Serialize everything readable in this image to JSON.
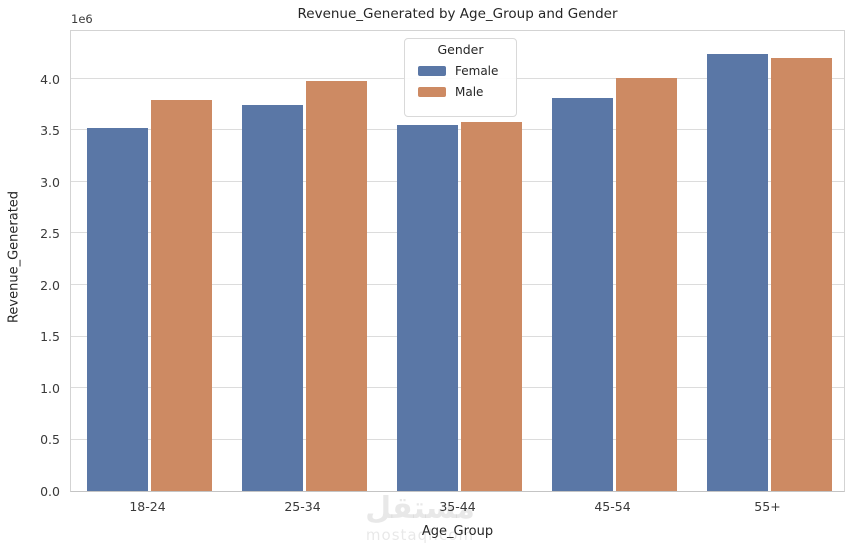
{
  "chart_data": {
    "type": "bar",
    "title": "Revenue_Generated by Age_Group and Gender",
    "xlabel": "Age_Group",
    "ylabel": "Revenue_Generated",
    "offset_text": "1e6",
    "categories": [
      "18-24",
      "25-34",
      "35-44",
      "45-54",
      "55+"
    ],
    "series": [
      {
        "name": "Female",
        "color": "#5A77A6",
        "values": [
          3520000,
          3750000,
          3550000,
          3820000,
          4240000
        ]
      },
      {
        "name": "Male",
        "color": "#CD8A63",
        "values": [
          3800000,
          3980000,
          3580000,
          4010000,
          4200000
        ]
      }
    ],
    "legend": {
      "title": "Gender",
      "position": "upper center",
      "entries": [
        "Female",
        "Male"
      ]
    },
    "ylim": [
      0,
      4485000
    ],
    "ytick_values": [
      0,
      500000,
      1000000,
      1500000,
      2000000,
      2500000,
      3000000,
      3500000,
      4000000
    ],
    "ytick_labels": [
      "0.0",
      "0.5",
      "1.0",
      "1.5",
      "2.0",
      "2.5",
      "3.0",
      "3.5",
      "4.0"
    ],
    "grid": "horizontal",
    "colors": {
      "grid": "#dcdcdc",
      "spine": "#d3d3d3",
      "text": "#262626"
    }
  },
  "watermark": {
    "arabic": "مستقل",
    "latin": "mostaql.com"
  }
}
